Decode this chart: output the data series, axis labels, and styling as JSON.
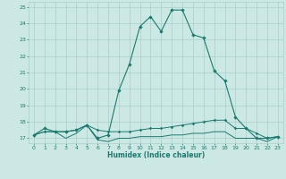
{
  "title": "",
  "xlabel": "Humidex (Indice chaleur)",
  "bg_color": "#cce8e4",
  "grid_color": "#aacfcb",
  "line_color": "#1a7a6e",
  "xlim": [
    -0.5,
    23.5
  ],
  "ylim": [
    16.7,
    25.3
  ],
  "xticks": [
    0,
    1,
    2,
    3,
    4,
    5,
    6,
    7,
    8,
    9,
    10,
    11,
    12,
    13,
    14,
    15,
    16,
    17,
    18,
    19,
    20,
    21,
    22,
    23
  ],
  "yticks": [
    17,
    18,
    19,
    20,
    21,
    22,
    23,
    24,
    25
  ],
  "line_main_x": [
    0,
    1,
    2,
    3,
    4,
    5,
    6,
    7,
    8,
    9,
    10,
    11,
    12,
    13,
    14,
    15,
    16,
    17,
    18,
    19,
    20,
    21,
    22,
    23
  ],
  "line_main_y": [
    17.2,
    17.6,
    17.4,
    17.4,
    17.5,
    17.8,
    17.0,
    17.2,
    19.9,
    21.5,
    23.8,
    24.4,
    23.5,
    24.8,
    24.8,
    23.3,
    23.1,
    21.1,
    20.5,
    18.3,
    17.6,
    17.0,
    17.0,
    17.1
  ],
  "line_flat_x": [
    0,
    1,
    2,
    3,
    4,
    5,
    6,
    7,
    8,
    9,
    10,
    11,
    12,
    13,
    14,
    15,
    16,
    17,
    18,
    19,
    20,
    21,
    22,
    23
  ],
  "line_flat_y": [
    17.2,
    17.4,
    17.4,
    17.0,
    17.3,
    17.8,
    16.9,
    16.8,
    17.0,
    17.0,
    17.1,
    17.1,
    17.1,
    17.2,
    17.2,
    17.3,
    17.3,
    17.4,
    17.4,
    17.0,
    17.0,
    17.0,
    16.8,
    17.1
  ],
  "line_mid_x": [
    0,
    1,
    2,
    3,
    4,
    5,
    6,
    7,
    8,
    9,
    10,
    11,
    12,
    13,
    14,
    15,
    16,
    17,
    18,
    19,
    20,
    21,
    22,
    23
  ],
  "line_mid_y": [
    17.2,
    17.4,
    17.4,
    17.4,
    17.5,
    17.8,
    17.5,
    17.4,
    17.4,
    17.4,
    17.5,
    17.6,
    17.6,
    17.7,
    17.8,
    17.9,
    18.0,
    18.1,
    18.1,
    17.6,
    17.6,
    17.3,
    17.0,
    17.1
  ]
}
